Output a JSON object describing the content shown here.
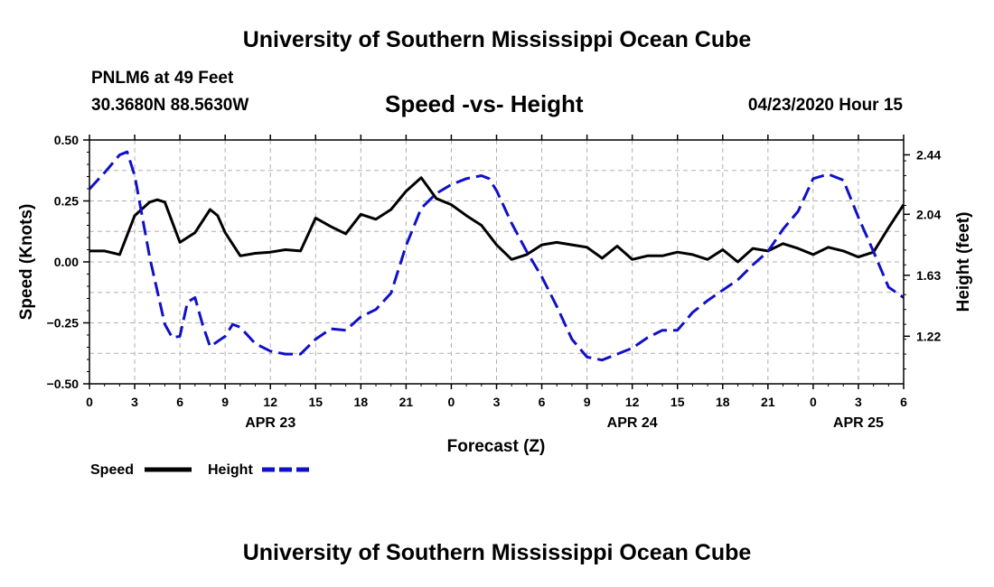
{
  "header": {
    "title": "University of Southern Mississippi Ocean Cube",
    "station": "PNLM6 at 49 Feet",
    "coords": "30.3680N 88.5630W",
    "chart_title": "Speed -vs- Height",
    "date_hour": "04/23/2020 Hour 15"
  },
  "footer": {
    "title": "University of Southern Mississippi Ocean Cube"
  },
  "colors": {
    "speed": "#000000",
    "height": "#1010c8",
    "grid": "#b0b0b0"
  },
  "chart_data": {
    "type": "line",
    "title": "Speed -vs- Height",
    "xlabel": "Forecast (Z)",
    "ylabel": "Speed (Knots)",
    "y2label": "Height (feet)",
    "xlim": [
      0,
      54
    ],
    "ylim": [
      -0.5,
      0.5
    ],
    "y2lim": [
      0.9,
      2.54
    ],
    "grid": true,
    "legend_position": "bottom-left",
    "x_ticks": [
      0,
      3,
      6,
      9,
      12,
      15,
      18,
      21,
      24,
      27,
      30,
      33,
      36,
      39,
      42,
      45,
      48,
      51,
      54
    ],
    "x_tick_labels": [
      "0",
      "3",
      "6",
      "9",
      "12",
      "15",
      "18",
      "21",
      "0",
      "3",
      "6",
      "9",
      "12",
      "15",
      "18",
      "21",
      "0",
      "3",
      "6"
    ],
    "date_labels": [
      {
        "x": 12,
        "label": "APR 23"
      },
      {
        "x": 36,
        "label": "APR 24"
      },
      {
        "x": 51,
        "label": "APR 25"
      }
    ],
    "y_ticks": [
      0.5,
      0.25,
      0.0,
      -0.25,
      -0.5
    ],
    "y_tick_labels": [
      "0.50",
      "0.25",
      "0.00",
      "−0.25",
      "−0.50"
    ],
    "y2_ticks": [
      2.44,
      2.04,
      1.63,
      1.22
    ],
    "y2_tick_labels": [
      "2.44",
      "2.04",
      "1.63",
      "1.22"
    ],
    "series": [
      {
        "name": "Speed",
        "axis": "left",
        "style": "solid",
        "x": [
          0,
          1,
          2,
          3,
          4,
          4.5,
          5,
          6,
          7,
          8,
          8.5,
          9,
          10,
          11,
          12,
          13,
          14,
          15,
          16,
          17,
          18,
          19,
          20,
          21,
          22,
          23,
          24,
          25,
          26,
          27,
          28,
          29,
          30,
          31,
          32,
          33,
          34,
          35,
          36,
          37,
          38,
          39,
          40,
          41,
          42,
          43,
          44,
          45,
          46,
          47,
          48,
          49,
          50,
          51,
          52,
          53,
          54
        ],
        "values": [
          0.045,
          0.045,
          0.03,
          0.19,
          0.245,
          0.255,
          0.245,
          0.08,
          0.12,
          0.215,
          0.19,
          0.12,
          0.025,
          0.035,
          0.04,
          0.05,
          0.045,
          0.18,
          0.145,
          0.115,
          0.195,
          0.175,
          0.215,
          0.29,
          0.345,
          0.26,
          0.235,
          0.19,
          0.15,
          0.07,
          0.01,
          0.03,
          0.07,
          0.08,
          0.07,
          0.06,
          0.015,
          0.065,
          0.01,
          0.025,
          0.025,
          0.04,
          0.03,
          0.01,
          0.05,
          0.0,
          0.055,
          0.045,
          0.075,
          0.055,
          0.03,
          0.06,
          0.045,
          0.02,
          0.04,
          0.14,
          0.235
        ]
      },
      {
        "name": "Height",
        "axis": "right",
        "style": "dashed",
        "x": [
          0,
          1,
          2,
          2.5,
          3,
          4,
          5,
          5.5,
          6,
          6.5,
          7,
          7.5,
          8,
          9,
          9.5,
          10,
          11,
          12,
          13,
          14,
          15,
          16,
          17,
          18,
          19,
          20,
          21,
          22,
          23,
          24,
          25,
          26,
          26.5,
          27,
          28,
          29,
          30,
          31,
          32,
          33,
          34,
          35,
          36,
          37,
          38,
          39,
          40,
          41,
          42,
          43,
          44,
          45,
          46,
          47,
          48,
          49,
          50,
          51,
          52,
          53,
          54
        ],
        "values": [
          2.21,
          2.32,
          2.44,
          2.46,
          2.3,
          1.75,
          1.3,
          1.21,
          1.22,
          1.45,
          1.48,
          1.3,
          1.15,
          1.22,
          1.3,
          1.28,
          1.17,
          1.12,
          1.1,
          1.1,
          1.2,
          1.27,
          1.26,
          1.35,
          1.4,
          1.51,
          1.83,
          2.08,
          2.18,
          2.24,
          2.28,
          2.3,
          2.28,
          2.2,
          1.98,
          1.79,
          1.62,
          1.42,
          1.2,
          1.08,
          1.06,
          1.1,
          1.14,
          1.21,
          1.26,
          1.26,
          1.38,
          1.46,
          1.53,
          1.6,
          1.7,
          1.79,
          1.94,
          2.06,
          2.28,
          2.31,
          2.27,
          2.02,
          1.79,
          1.55,
          1.48
        ]
      }
    ]
  }
}
